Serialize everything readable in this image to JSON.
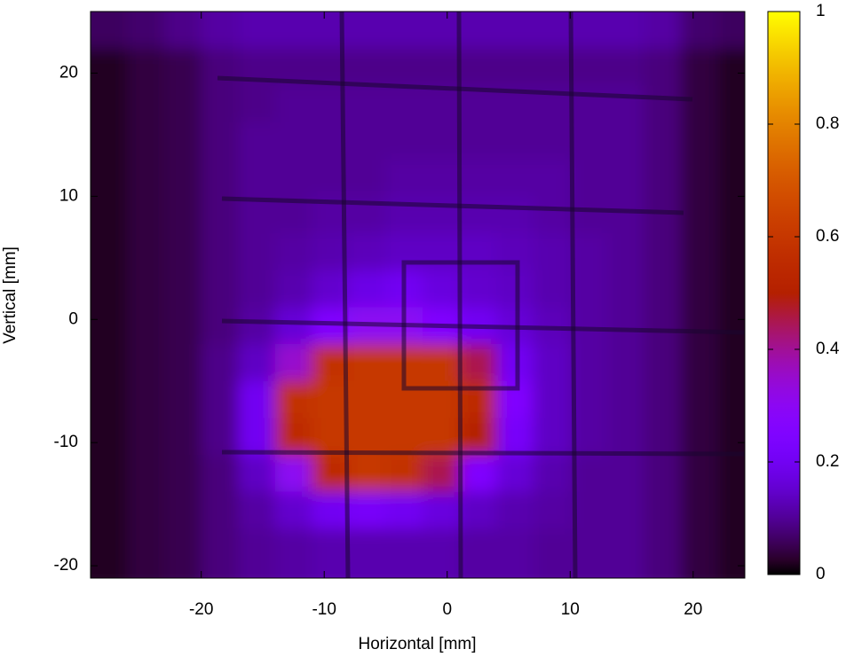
{
  "chart_data": {
    "type": "heatmap",
    "xlabel": "Horizontal [mm]",
    "ylabel": "Vertical [mm]",
    "x": [
      -27.5,
      -24.5,
      -21.5,
      -18.5,
      -15.5,
      -12.5,
      -9.5,
      -6.5,
      -3.5,
      -0.5,
      2.5,
      5.5,
      8.5,
      11.5,
      14.5,
      17.5,
      20.5,
      23.5
    ],
    "y": [
      23.5,
      20.5,
      17.5,
      14.5,
      11.5,
      8.5,
      5.5,
      2.5,
      -0.5,
      -3.5,
      -6.5,
      -9.5,
      -12.5,
      -15.5,
      -18.5
    ],
    "z": [
      [
        0.06,
        0.07,
        0.09,
        0.11,
        0.12,
        0.12,
        0.12,
        0.12,
        0.12,
        0.12,
        0.12,
        0.12,
        0.12,
        0.12,
        0.12,
        0.11,
        0.07,
        0.06
      ],
      [
        0.02,
        0.04,
        0.05,
        0.08,
        0.09,
        0.09,
        0.09,
        0.09,
        0.09,
        0.09,
        0.09,
        0.09,
        0.09,
        0.09,
        0.09,
        0.08,
        0.04,
        0.02
      ],
      [
        0.02,
        0.04,
        0.05,
        0.08,
        0.09,
        0.1,
        0.1,
        0.1,
        0.1,
        0.1,
        0.1,
        0.1,
        0.1,
        0.1,
        0.1,
        0.08,
        0.04,
        0.02
      ],
      [
        0.02,
        0.04,
        0.05,
        0.08,
        0.1,
        0.1,
        0.1,
        0.1,
        0.1,
        0.1,
        0.1,
        0.1,
        0.1,
        0.1,
        0.1,
        0.08,
        0.04,
        0.02
      ],
      [
        0.02,
        0.04,
        0.05,
        0.08,
        0.1,
        0.1,
        0.1,
        0.1,
        0.11,
        0.11,
        0.11,
        0.11,
        0.11,
        0.1,
        0.1,
        0.08,
        0.04,
        0.02
      ],
      [
        0.02,
        0.04,
        0.05,
        0.08,
        0.1,
        0.1,
        0.11,
        0.11,
        0.12,
        0.12,
        0.12,
        0.12,
        0.11,
        0.1,
        0.1,
        0.08,
        0.04,
        0.02
      ],
      [
        0.02,
        0.04,
        0.05,
        0.08,
        0.1,
        0.11,
        0.12,
        0.13,
        0.14,
        0.14,
        0.14,
        0.13,
        0.12,
        0.11,
        0.1,
        0.08,
        0.04,
        0.02
      ],
      [
        0.02,
        0.04,
        0.05,
        0.08,
        0.1,
        0.12,
        0.15,
        0.18,
        0.2,
        0.17,
        0.15,
        0.14,
        0.12,
        0.11,
        0.1,
        0.08,
        0.04,
        0.02
      ],
      [
        0.02,
        0.04,
        0.05,
        0.08,
        0.11,
        0.16,
        0.25,
        0.3,
        0.3,
        0.25,
        0.2,
        0.16,
        0.13,
        0.11,
        0.1,
        0.08,
        0.04,
        0.02
      ],
      [
        0.02,
        0.04,
        0.05,
        0.09,
        0.14,
        0.35,
        0.58,
        0.6,
        0.6,
        0.6,
        0.45,
        0.2,
        0.14,
        0.11,
        0.1,
        0.08,
        0.04,
        0.02
      ],
      [
        0.02,
        0.04,
        0.05,
        0.09,
        0.2,
        0.58,
        0.6,
        0.6,
        0.6,
        0.6,
        0.55,
        0.25,
        0.14,
        0.11,
        0.1,
        0.08,
        0.04,
        0.02
      ],
      [
        0.02,
        0.04,
        0.05,
        0.09,
        0.2,
        0.55,
        0.6,
        0.6,
        0.6,
        0.6,
        0.5,
        0.22,
        0.14,
        0.11,
        0.1,
        0.08,
        0.04,
        0.02
      ],
      [
        0.02,
        0.04,
        0.05,
        0.08,
        0.14,
        0.3,
        0.55,
        0.6,
        0.58,
        0.45,
        0.25,
        0.16,
        0.12,
        0.1,
        0.1,
        0.08,
        0.04,
        0.02
      ],
      [
        0.02,
        0.04,
        0.05,
        0.08,
        0.11,
        0.15,
        0.2,
        0.22,
        0.2,
        0.17,
        0.14,
        0.12,
        0.11,
        0.1,
        0.1,
        0.08,
        0.04,
        0.02
      ],
      [
        0.02,
        0.04,
        0.05,
        0.08,
        0.1,
        0.11,
        0.12,
        0.12,
        0.12,
        0.12,
        0.11,
        0.11,
        0.1,
        0.1,
        0.1,
        0.08,
        0.04,
        0.02
      ]
    ],
    "xlim": [
      -29,
      24.2
    ],
    "ylim": [
      -21,
      25
    ],
    "zlim": [
      0,
      1
    ],
    "xticks": [
      -20,
      -10,
      0,
      10,
      20
    ],
    "yticks": [
      -20,
      -10,
      0,
      10,
      20
    ],
    "zticks": [
      0,
      0.2,
      0.4,
      0.6,
      0.8,
      1
    ]
  }
}
